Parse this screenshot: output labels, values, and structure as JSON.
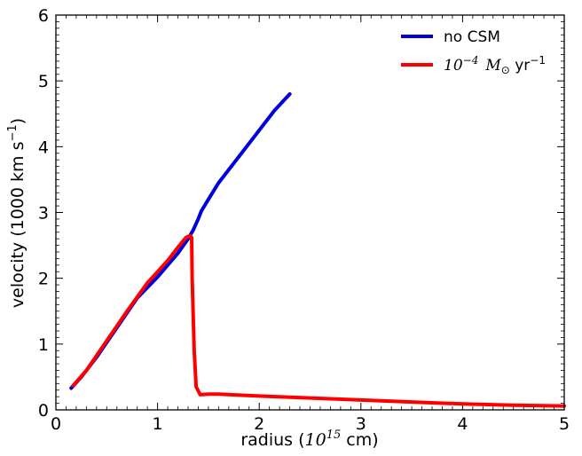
{
  "chart_data": {
    "type": "line",
    "title": "",
    "xlabel": "radius (10^15 cm)",
    "ylabel": "velocity (1000 km s^-1)",
    "xlim": [
      0,
      5
    ],
    "ylim": [
      0,
      6
    ],
    "xticks": [
      0,
      1,
      2,
      3,
      4,
      5
    ],
    "yticks": [
      0,
      1,
      2,
      3,
      4,
      5,
      6
    ],
    "grid": false,
    "legend_position": "top-right",
    "series": [
      {
        "name": "no CSM",
        "color": "#0000dd",
        "x": [
          0.15,
          0.25,
          0.4,
          0.6,
          0.8,
          1.0,
          1.1,
          1.2,
          1.3,
          1.35,
          1.4,
          1.43,
          1.5,
          1.6,
          1.8,
          2.0,
          2.15,
          2.3
        ],
        "y": [
          0.33,
          0.5,
          0.8,
          1.25,
          1.7,
          2.02,
          2.2,
          2.38,
          2.6,
          2.73,
          2.9,
          3.02,
          3.2,
          3.45,
          3.85,
          4.25,
          4.55,
          4.8
        ]
      },
      {
        "name": "10^-4 M_sun yr^-1",
        "color": "#ff0000",
        "x": [
          0.17,
          0.3,
          0.5,
          0.7,
          0.9,
          1.0,
          1.1,
          1.2,
          1.28,
          1.32,
          1.335,
          1.34,
          1.36,
          1.38,
          1.42,
          1.5,
          1.6,
          2.0,
          2.5,
          3.0,
          3.5,
          4.0,
          4.5,
          5.0
        ],
        "y": [
          0.37,
          0.6,
          1.05,
          1.5,
          1.93,
          2.1,
          2.27,
          2.47,
          2.62,
          2.65,
          2.62,
          2.0,
          0.9,
          0.35,
          0.23,
          0.24,
          0.24,
          0.21,
          0.18,
          0.15,
          0.12,
          0.09,
          0.07,
          0.06
        ]
      }
    ]
  },
  "labels": {
    "xlabel_pre": "radius (",
    "xlabel_base": "10",
    "xlabel_exp": "15",
    "xlabel_post": " cm)",
    "ylabel_pre": "velocity (1000 km s",
    "ylabel_exp": "−1",
    "ylabel_post": ")",
    "legend_1": "no CSM",
    "legend_2_base": "10",
    "legend_2_exp": "−4",
    "legend_2_m": "M",
    "legend_2_sun": "⊙",
    "legend_2_unit": " yr",
    "legend_2_unit_exp": "−1"
  }
}
